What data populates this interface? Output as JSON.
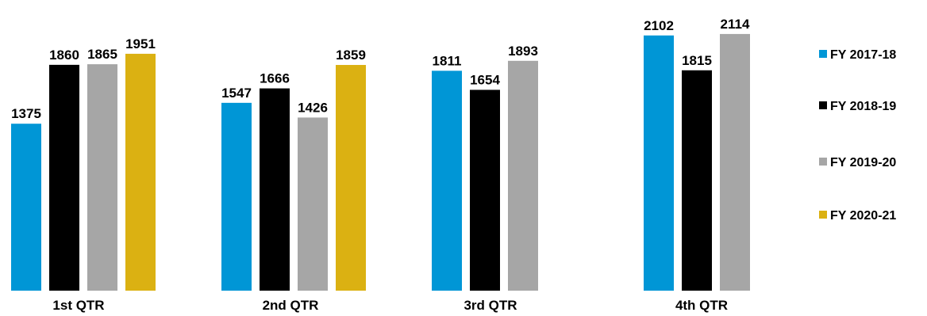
{
  "chart_data": {
    "type": "bar",
    "title": "",
    "xlabel": "",
    "ylabel": "",
    "ylim": [
      0,
      2200
    ],
    "grid": false,
    "legend_position": "right",
    "categories": [
      "1st QTR",
      "2nd QTR",
      "3rd QTR",
      "4th QTR"
    ],
    "series": [
      {
        "name": "FY 2017-18",
        "color": "#0096D6",
        "values": [
          1375,
          1547,
          1811,
          2102
        ]
      },
      {
        "name": "FY 2018-19",
        "color": "#000000",
        "values": [
          1860,
          1666,
          1654,
          1815
        ]
      },
      {
        "name": "FY 2019-20",
        "color": "#A6A6A6",
        "values": [
          1865,
          1426,
          1893,
          2114
        ]
      },
      {
        "name": "FY 2020-21",
        "color": "#DBB112",
        "values": [
          1951,
          1859,
          null,
          null
        ]
      }
    ]
  }
}
